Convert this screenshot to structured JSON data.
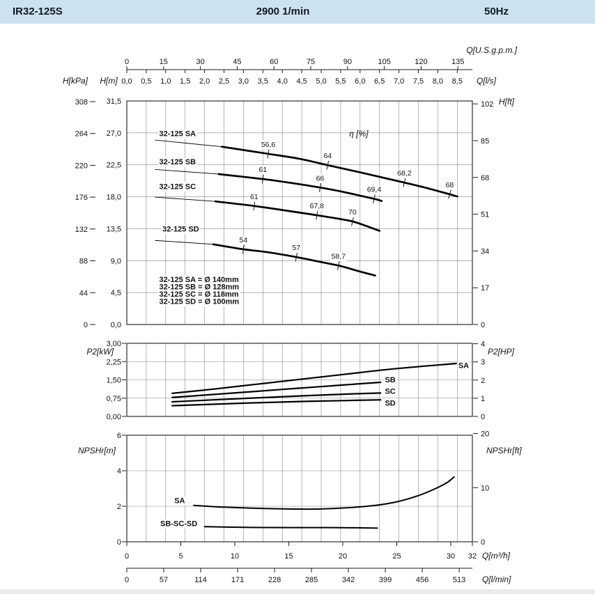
{
  "header": {
    "model": "IR32-125S",
    "speed": "2900 1/min",
    "frequency": "50Hz"
  },
  "chart_data": [
    {
      "name": "head-capacity",
      "type": "line",
      "x_range": [
        0,
        32
      ],
      "y_range": [
        0,
        31.5
      ],
      "x_grid_step": 1.8,
      "y_grid_step": 4.5,
      "axes": {
        "top1": {
          "label": "Q[U.S.g.p.m.]",
          "factor": 0.22712,
          "dec": 0,
          "ticks": [
            0,
            15,
            30,
            45,
            60,
            75,
            90,
            105,
            120,
            135
          ]
        },
        "top2": {
          "label": "Q[l/s]",
          "factor": 3.6,
          "dec": 1,
          "ticks": [
            0,
            0.5,
            1,
            1.5,
            2,
            2.5,
            3,
            3.5,
            4,
            4.5,
            5,
            5.5,
            6,
            6.5,
            7,
            7.5,
            8,
            8.5
          ]
        },
        "left_outer": {
          "label": "H[kPa]",
          "factor": 0.10197,
          "dec": 0,
          "ticks": [
            0,
            44,
            88,
            132,
            176,
            220,
            264,
            308
          ]
        },
        "left_inner": {
          "label": "H[m]",
          "factor": 1,
          "dec": 1,
          "ticks": [
            0,
            4.5,
            9,
            13.5,
            18,
            22.5,
            27,
            31.5
          ]
        },
        "right": {
          "label": "H[ft]",
          "factor": 0.3048,
          "dec": 0,
          "ticks": [
            0,
            17,
            34,
            51,
            68,
            85,
            102
          ]
        }
      },
      "eta_label": {
        "text": "η [%]",
        "pos": [
          20.6,
          26.5
        ]
      },
      "series": [
        {
          "name": "32-125 SA",
          "label_pos": [
            3.0,
            26.55
          ],
          "leader": [
            [
              2.6,
              26.0
            ],
            [
              8.8,
              25.05
            ]
          ],
          "points": [
            [
              8.8,
              25.05
            ],
            [
              13.1,
              24.05
            ],
            [
              16,
              23.35
            ],
            [
              18.6,
              22.45
            ],
            [
              22,
              21.3
            ],
            [
              25.7,
              20.0
            ],
            [
              28,
              19.15
            ],
            [
              30.6,
              18.05
            ]
          ],
          "eff_marks": [
            {
              "q": 13.1,
              "label": "56,6"
            },
            {
              "q": 18.6,
              "label": "64"
            },
            {
              "q": 25.7,
              "label": "68,2"
            },
            {
              "q": 29.9,
              "label": "68"
            }
          ]
        },
        {
          "name": "32-125 SB",
          "label_pos": [
            3.0,
            22.55
          ],
          "leader": [
            [
              2.6,
              21.85
            ],
            [
              8.5,
              21.2
            ]
          ],
          "points": [
            [
              8.5,
              21.2
            ],
            [
              12.6,
              20.5
            ],
            [
              15,
              20.0
            ],
            [
              17.9,
              19.3
            ],
            [
              20,
              18.7
            ],
            [
              22.9,
              17.7
            ],
            [
              23.6,
              17.4
            ]
          ],
          "eff_marks": [
            {
              "q": 12.6,
              "label": "61"
            },
            {
              "q": 17.9,
              "label": "66"
            },
            {
              "q": 22.9,
              "label": "69,4"
            }
          ]
        },
        {
          "name": "32-125 SC",
          "label_pos": [
            3.0,
            19.1
          ],
          "leader": [
            [
              2.6,
              17.95
            ],
            [
              8.2,
              17.35
            ]
          ],
          "points": [
            [
              8.2,
              17.35
            ],
            [
              11.8,
              16.7
            ],
            [
              15,
              16.0
            ],
            [
              17.6,
              15.4
            ],
            [
              20,
              14.8
            ],
            [
              21.2,
              14.4
            ],
            [
              23.4,
              13.2
            ]
          ],
          "eff_marks": [
            {
              "q": 11.8,
              "label": "61"
            },
            {
              "q": 17.6,
              "label": "67,8"
            },
            {
              "q": 20.9,
              "label": "70"
            }
          ]
        },
        {
          "name": "32-125 SD",
          "label_pos": [
            3.3,
            13.1
          ],
          "leader": [
            [
              2.6,
              11.85
            ],
            [
              8.0,
              11.3
            ]
          ],
          "points": [
            [
              8.0,
              11.3
            ],
            [
              10.8,
              10.6
            ],
            [
              13,
              10.2
            ],
            [
              15.7,
              9.5
            ],
            [
              18,
              8.8
            ],
            [
              19.9,
              8.2
            ],
            [
              21.5,
              7.5
            ],
            [
              23.0,
              6.9
            ]
          ],
          "eff_marks": [
            {
              "q": 10.8,
              "label": "54"
            },
            {
              "q": 15.7,
              "label": "57"
            },
            {
              "q": 19.6,
              "label": "58,7"
            }
          ]
        }
      ],
      "legend": {
        "pos": [
          3.0,
          6.0
        ],
        "lines": [
          "32-125 SA = Ø 140mm",
          "32-125 SB = Ø 128mm",
          "32-125 SC = Ø 118mm",
          "32-125 SD = Ø 100mm"
        ]
      }
    },
    {
      "name": "power",
      "type": "line",
      "x_range": [
        0,
        32
      ],
      "y_range": [
        0,
        3
      ],
      "x_grid_step": 1.8,
      "y_grid_step": 0.75,
      "axes": {
        "left_inner": {
          "label": "P2[kW]",
          "factor": 1,
          "dec": 2,
          "ticks": [
            0,
            0.75,
            1.5,
            2.25,
            3
          ]
        },
        "right": {
          "label": "P2[HP]",
          "factor": 0.7457,
          "dec": 0,
          "ticks": [
            0,
            1,
            2,
            3,
            4
          ]
        }
      },
      "series": [
        {
          "name": "SA",
          "label_pos": [
            30.7,
            1.98
          ],
          "points": [
            [
              4.2,
              0.95
            ],
            [
              8,
              1.12
            ],
            [
              12,
              1.32
            ],
            [
              16,
              1.52
            ],
            [
              20,
              1.72
            ],
            [
              24,
              1.92
            ],
            [
              28,
              2.08
            ],
            [
              30.5,
              2.17
            ]
          ]
        },
        {
          "name": "SB",
          "label_pos": [
            23.9,
            1.4
          ],
          "points": [
            [
              4.2,
              0.78
            ],
            [
              8,
              0.9
            ],
            [
              12,
              1.03
            ],
            [
              16,
              1.16
            ],
            [
              20,
              1.29
            ],
            [
              23.5,
              1.4
            ]
          ]
        },
        {
          "name": "SC",
          "label_pos": [
            23.9,
            0.93
          ],
          "points": [
            [
              4.2,
              0.6
            ],
            [
              8,
              0.68
            ],
            [
              12,
              0.76
            ],
            [
              16,
              0.84
            ],
            [
              20,
              0.91
            ],
            [
              23.5,
              0.96
            ]
          ]
        },
        {
          "name": "SD",
          "label_pos": [
            23.9,
            0.45
          ],
          "points": [
            [
              4.2,
              0.44
            ],
            [
              8,
              0.5
            ],
            [
              12,
              0.56
            ],
            [
              16,
              0.61
            ],
            [
              20,
              0.65
            ],
            [
              23.5,
              0.68
            ]
          ]
        }
      ]
    },
    {
      "name": "npshr",
      "type": "line",
      "x_range": [
        0,
        32
      ],
      "y_range": [
        0,
        6
      ],
      "x_grid_step": 1.8,
      "y_grid_step": 2,
      "axes": {
        "left_inner": {
          "label": "NPSHr[m]",
          "factor": 1,
          "dec": 0,
          "ticks": [
            0,
            2,
            4,
            6
          ]
        },
        "right": {
          "label": "NPSHr[ft]",
          "factor": 0.3048,
          "dec": 0,
          "ticks": [
            0,
            10,
            20
          ]
        }
      },
      "series": [
        {
          "name": "SA",
          "label_pos": [
            4.4,
            2.18
          ],
          "points": [
            [
              6.2,
              2.05
            ],
            [
              9,
              1.95
            ],
            [
              13,
              1.87
            ],
            [
              17,
              1.84
            ],
            [
              20,
              1.9
            ],
            [
              23,
              2.05
            ],
            [
              25,
              2.25
            ],
            [
              27,
              2.6
            ],
            [
              28.6,
              3.0
            ],
            [
              29.7,
              3.35
            ],
            [
              30.3,
              3.65
            ]
          ]
        },
        {
          "name": "SB-SC-SD",
          "label_pos": [
            3.1,
            0.88
          ],
          "points": [
            [
              7.2,
              0.85
            ],
            [
              11,
              0.81
            ],
            [
              15,
              0.8
            ],
            [
              19,
              0.8
            ],
            [
              23.2,
              0.77
            ]
          ]
        }
      ]
    }
  ],
  "bottom_axes": [
    {
      "label": "Q[m³/h]",
      "factor": 1,
      "dec": 0,
      "ticks": [
        0,
        5,
        10,
        15,
        20,
        25,
        30,
        32
      ]
    },
    {
      "label": "Q[l/min]",
      "factor": 0.06,
      "dec": 0,
      "ticks": [
        0,
        57,
        114,
        171,
        228,
        285,
        342,
        399,
        456,
        513
      ]
    }
  ]
}
